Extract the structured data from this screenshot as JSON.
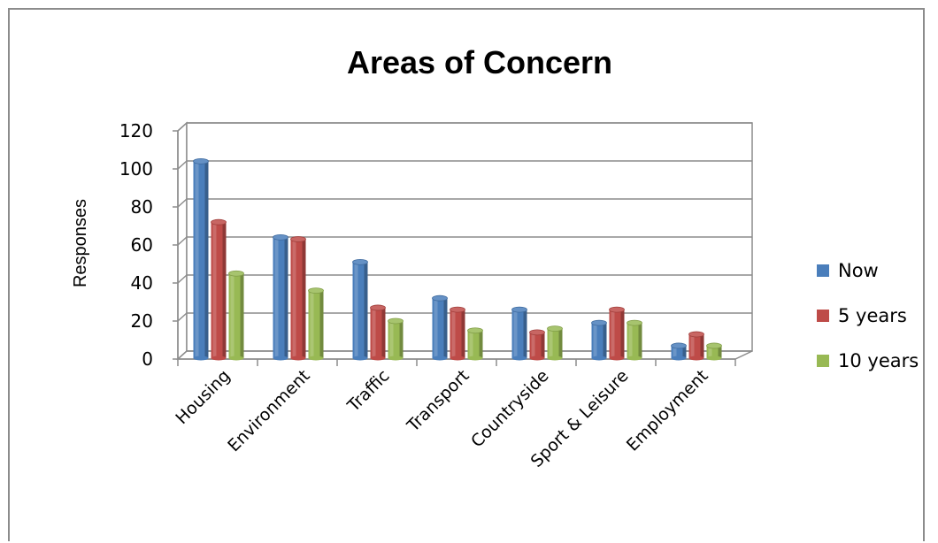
{
  "chart_data": {
    "type": "bar",
    "title": "Areas of Concern",
    "xlabel": "",
    "ylabel": "Responses",
    "ylim": [
      0,
      120
    ],
    "yticks": [
      "0",
      "20",
      "40",
      "60",
      "80",
      "100",
      "120"
    ],
    "categories": [
      "Housing",
      "Environment",
      "Traffic",
      "Transport",
      "Countryside",
      "Sport & Leisure",
      "Employment"
    ],
    "series": [
      {
        "name": "Now",
        "color": "#4a7ebb",
        "values": [
          104,
          64,
          51,
          32,
          26,
          19,
          7
        ]
      },
      {
        "name": "5 years",
        "color": "#be4b48",
        "values": [
          72,
          63,
          27,
          26,
          14,
          26,
          13
        ]
      },
      {
        "name": "10 years",
        "color": "#98b954",
        "values": [
          45,
          36,
          20,
          15,
          16,
          19,
          7
        ]
      }
    ],
    "grid": true,
    "legend_position": "right",
    "style": "3d-clustered-column"
  }
}
